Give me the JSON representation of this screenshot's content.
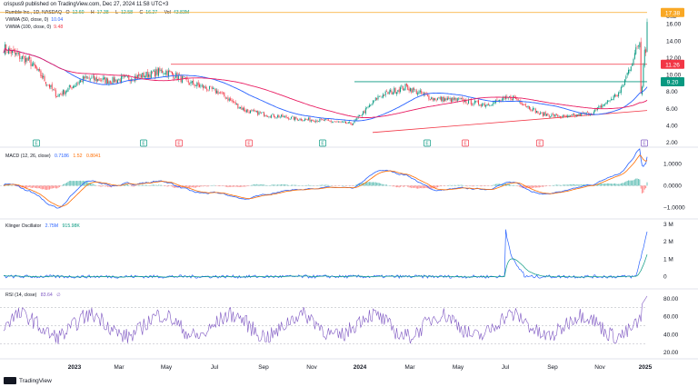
{
  "header": {
    "publisher": "crispus9 published on TradingView.com, Dec 27, 2024 11:58 UTC+3",
    "symbol_line": "Rumble Inc., 1D, NASDAQ",
    "ohlc": {
      "o_label": "O",
      "o": "12.60",
      "h_label": "H",
      "h": "17.38",
      "l_label": "L",
      "l": "12.58",
      "c_label": "C",
      "c": "16.27",
      "vol_label": "Vol",
      "vol": "43.83M"
    },
    "vwma50": {
      "label": "VWMA (50, close, 0)",
      "value": "10.04"
    },
    "vwma100": {
      "label": "VWMA (100, close, 0)",
      "value": "9.48"
    }
  },
  "currency": "USD",
  "price_axis": {
    "ticks": [
      "16.00",
      "14.00",
      "12.00",
      "10.00",
      "8.00",
      "6.00",
      "4.00",
      "2.00"
    ],
    "badges": [
      {
        "text": "17.38",
        "color": "#f9a825"
      },
      {
        "text": "11.26",
        "color": "#f23645"
      },
      {
        "text": "9.20",
        "color": "#089981"
      }
    ]
  },
  "macd_legend": {
    "label": "MACD (12, 26, close)",
    "v1": "0.7186",
    "v2": "1.52",
    "v3": "0.8041"
  },
  "macd_axis": [
    "1.0000",
    "0.0000",
    "−1.0000"
  ],
  "klinger_legend": {
    "label": "Klinger Oscillator",
    "v1": "2.75M",
    "v2": "915.98K"
  },
  "klinger_axis": [
    "3 M",
    "2 M",
    "1 M",
    "0"
  ],
  "rsi_legend": {
    "label": "RSI (14, close)",
    "v1": "83.64",
    "v2": "∅"
  },
  "rsi_axis": [
    "80.00",
    "60.00",
    "40.00",
    "20.00"
  ],
  "time_axis": [
    "2023",
    "Mar",
    "May",
    "Jul",
    "Sep",
    "Nov",
    "2024",
    "Mar",
    "May",
    "Jul",
    "Sep",
    "Nov",
    "2025"
  ],
  "footer": {
    "brand": "TradingView"
  },
  "colors": {
    "up": "#089981",
    "down": "#f23645",
    "vwma50": "#2962ff",
    "vwma100": "#e91e63",
    "trend": "#f23645",
    "rsi": "#7e57c2",
    "macd": "#2962ff",
    "signal": "#ff6d00",
    "klinger": "#2962ff",
    "klinger_sig": "#089981"
  },
  "chart_data": {
    "type": "line",
    "title": "Rumble Inc., 1D, NASDAQ",
    "x": [
      "2022-12",
      "2023-01",
      "2023-02",
      "2023-03",
      "2023-04",
      "2023-05",
      "2023-06",
      "2023-07",
      "2023-08",
      "2023-09",
      "2023-10",
      "2023-11",
      "2023-12",
      "2024-01",
      "2024-02",
      "2024-03",
      "2024-04",
      "2024-05",
      "2024-06",
      "2024-07",
      "2024-08",
      "2024-09",
      "2024-10",
      "2024-11",
      "2024-12"
    ],
    "series": [
      {
        "values": [
          13.2,
          11.5,
          7.5,
          9.6,
          9.3,
          9.8,
          10.5,
          9.0,
          8.0,
          5.8,
          5.2,
          4.8,
          4.6,
          4.2,
          7.5,
          8.6,
          7.2,
          7.0,
          6.5,
          7.4,
          5.4,
          5.0,
          5.6,
          8.0,
          16.27
        ]
      }
    ],
    "ylim": [
      2,
      18
    ],
    "macd_ylim": [
      -1.4,
      1.6
    ],
    "klinger_ylim": [
      -0.6,
      3.2
    ],
    "rsi_ylim": [
      15,
      90
    ]
  },
  "events": {
    "e_markers": [
      "E",
      "E",
      "E",
      "E",
      "E",
      "E",
      "E",
      "E",
      "E",
      "E",
      "E"
    ]
  }
}
